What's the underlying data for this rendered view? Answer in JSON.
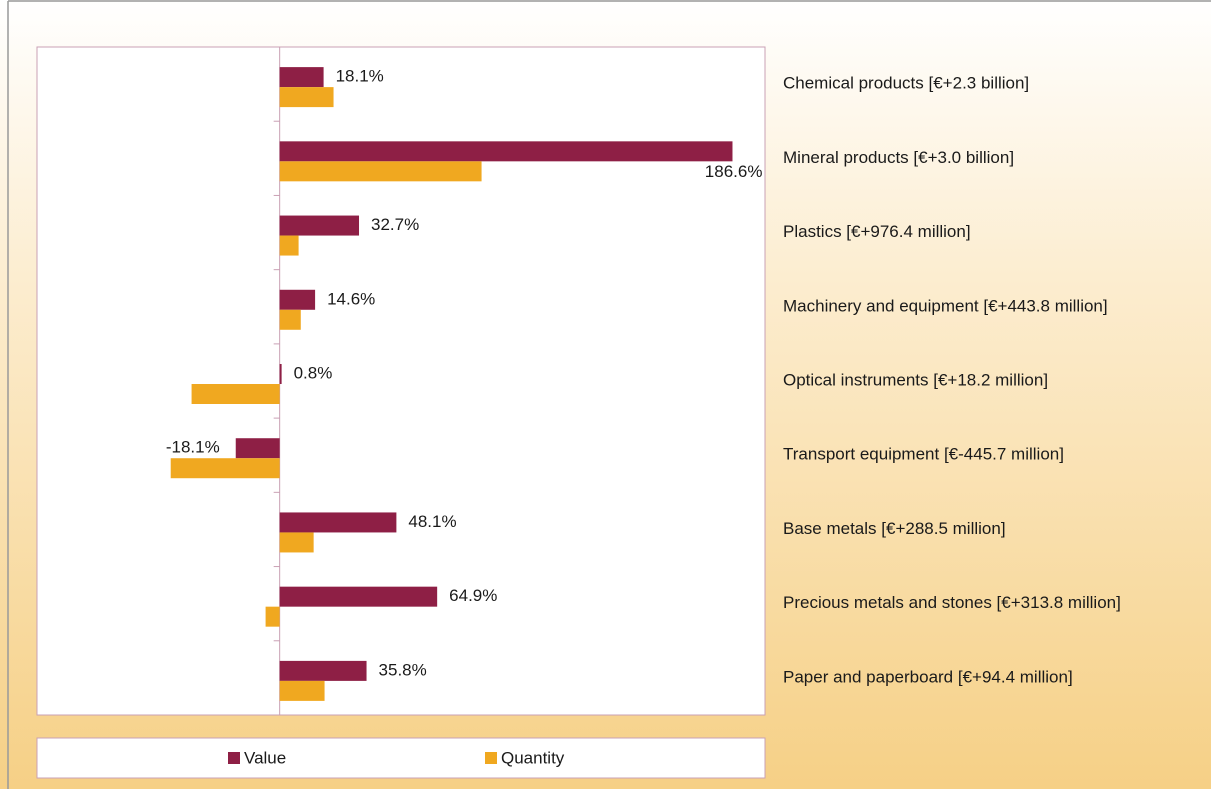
{
  "chart_data": {
    "type": "bar",
    "orientation": "horizontal",
    "categories": [
      "Chemical products [€+2.3 billion]",
      "Mineral products [€+3.0 billion]",
      "Plastics [€+976.4 million]",
      "Machinery and equipment [€+443.8 million]",
      "Optical instruments [€+18.2 million]",
      "Transport equipment [€-445.7 million]",
      "Base metals [€+288.5 million]",
      "Precious metals and stones [€+313.8 million]",
      "Paper and paperboard [€+94.4 million]"
    ],
    "series": [
      {
        "name": "Value",
        "color": "#8e1f45",
        "values": [
          18.1,
          186.6,
          32.7,
          14.6,
          0.8,
          -18.1,
          48.1,
          64.9,
          35.8
        ],
        "value_labels": [
          "18.1%",
          "186.6%",
          "32.7%",
          "14.6%",
          "0.8%",
          "-18.1%",
          "48.1%",
          "64.9%",
          "35.8%"
        ]
      },
      {
        "name": "Quantity",
        "color": "#f0a820",
        "values": [
          22.2,
          83.2,
          7.8,
          8.7,
          -36.3,
          -44.9,
          14.0,
          -5.8,
          18.5
        ]
      }
    ],
    "xlim": [
      -100,
      200
    ],
    "legend": "bottom"
  }
}
